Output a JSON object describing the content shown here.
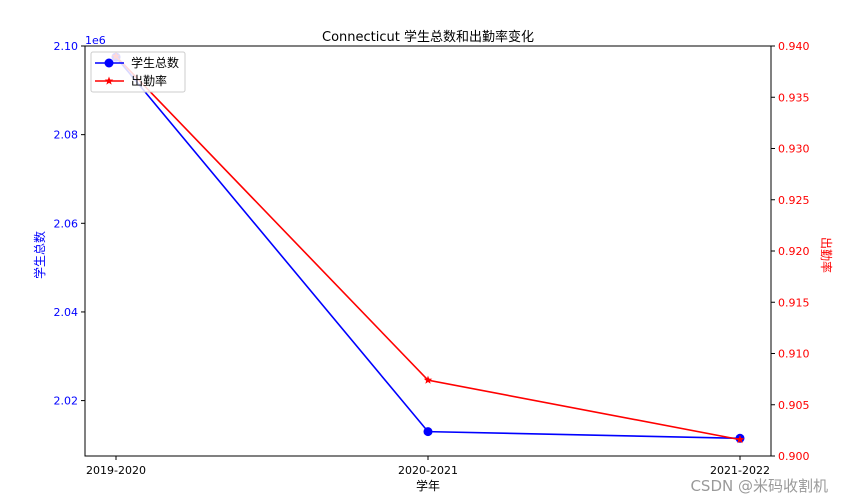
{
  "chart_data": {
    "type": "line",
    "title": "Connecticut 学生总数和出勤率变化",
    "xlabel": "学年",
    "categories": [
      "2019-2020",
      "2020-2021",
      "2021-2022"
    ],
    "y_left": {
      "label": "学生总数",
      "scale_label": "1e6",
      "range": [
        2.0075,
        2.1
      ],
      "ticks": [
        "2.02",
        "2.04",
        "2.06",
        "2.08",
        "2.10"
      ],
      "tick_values": [
        2.02,
        2.04,
        2.06,
        2.08,
        2.1
      ],
      "color": "#0000ff"
    },
    "y_right": {
      "label": "出勤率",
      "range": [
        0.9,
        0.94
      ],
      "ticks": [
        "0.900",
        "0.905",
        "0.910",
        "0.915",
        "0.920",
        "0.925",
        "0.930",
        "0.935",
        "0.940"
      ],
      "tick_values": [
        0.9,
        0.905,
        0.91,
        0.915,
        0.92,
        0.925,
        0.93,
        0.935,
        0.94
      ],
      "color": "#ff0000"
    },
    "series": [
      {
        "name": "学生总数",
        "axis": "left",
        "color": "#0000ff",
        "marker": "circle",
        "values": [
          2.0975,
          2.013,
          2.0115
        ]
      },
      {
        "name": "出勤率",
        "axis": "right",
        "color": "#ff0000",
        "marker": "star",
        "values": [
          0.939,
          0.9074,
          0.9016
        ]
      }
    ],
    "legend": "top-left",
    "grid": false
  },
  "watermark": "CSDN @米码收割机"
}
